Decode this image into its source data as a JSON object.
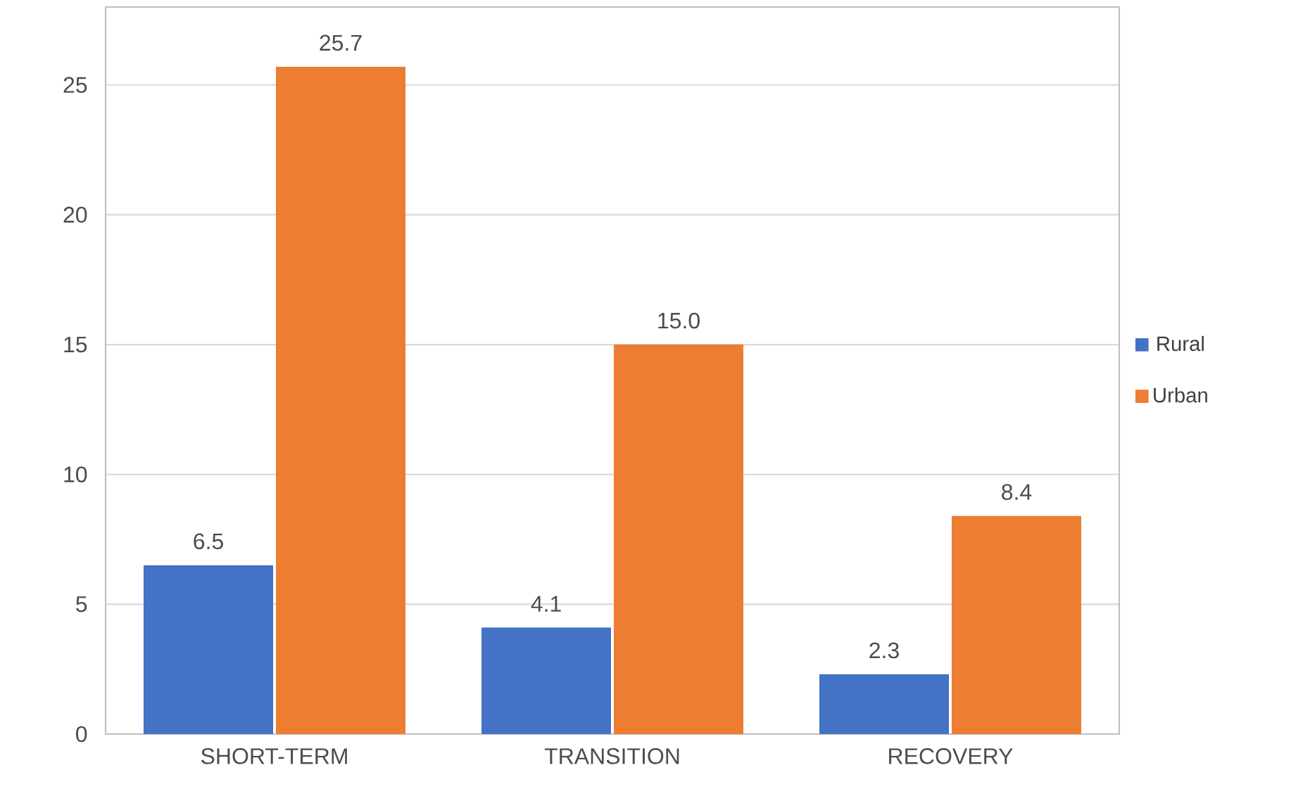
{
  "chart_data": {
    "type": "bar",
    "categories": [
      "SHORT-TERM",
      "TRANSITION",
      "RECOVERY"
    ],
    "series": [
      {
        "name": "Rural",
        "color": "#4472c4",
        "values": [
          6.5,
          4.1,
          2.3
        ],
        "value_labels": [
          "6.5",
          "4.1",
          "2.3"
        ]
      },
      {
        "name": "Urban",
        "color": "#ed7d31",
        "values": [
          25.7,
          15.0,
          8.4
        ],
        "value_labels": [
          "25.7",
          "15.0",
          "8.4"
        ]
      }
    ],
    "ylim": [
      0,
      28
    ],
    "yticks": [
      0,
      5,
      10,
      15,
      20,
      25
    ],
    "grid": "y",
    "legend": "right"
  }
}
